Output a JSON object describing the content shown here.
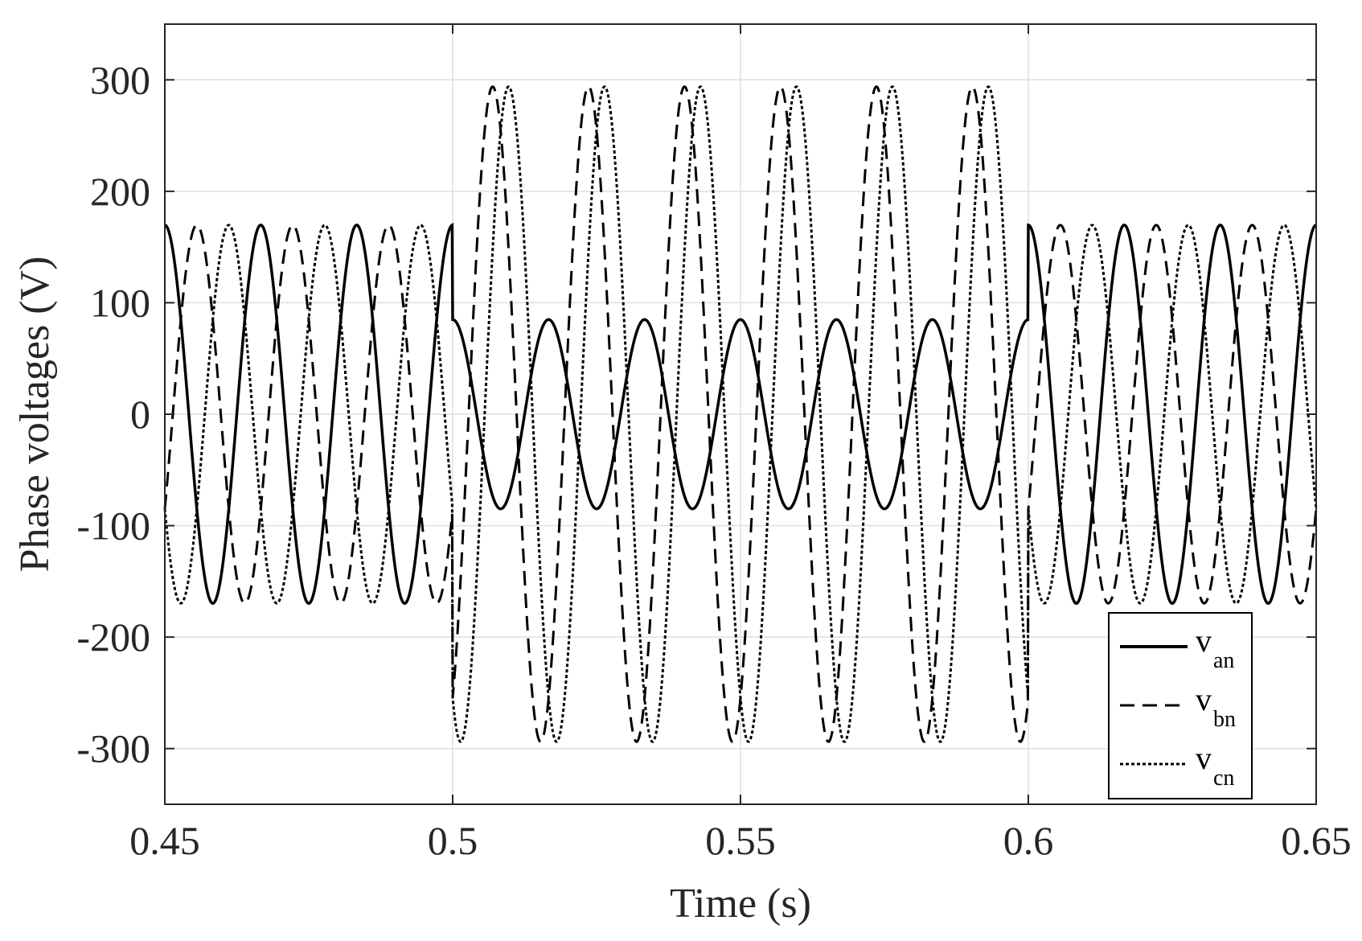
{
  "chart_data": {
    "type": "line",
    "xlabel": "Time (s)",
    "ylabel": "Phase voltages (V)",
    "xlim": [
      0.45,
      0.65
    ],
    "ylim": [
      -350,
      350
    ],
    "xticks": [
      0.45,
      0.5,
      0.55,
      0.6,
      0.65
    ],
    "xtick_labels": [
      "0.45",
      "0.5",
      "0.55",
      "0.6",
      "0.65"
    ],
    "yticks": [
      300,
      200,
      100,
      0,
      -100,
      -200,
      -300
    ],
    "ytick_labels": [
      "300",
      "200",
      "100",
      "0",
      "-100",
      "-200",
      "-300"
    ],
    "grid": true,
    "legend_position": "bottom-right",
    "frequency_hz": 60,
    "series": [
      {
        "name": "v",
        "subscript": "an",
        "style": "solid",
        "color": "#000000",
        "segments": [
          {
            "t_start": 0.45,
            "t_end": 0.5,
            "amplitude": 169.7,
            "phase_deg": 0
          },
          {
            "t_start": 0.5,
            "t_end": 0.6,
            "amplitude": 84.9,
            "phase_deg": 0
          },
          {
            "t_start": 0.6,
            "t_end": 0.65,
            "amplitude": 169.7,
            "phase_deg": 0
          }
        ]
      },
      {
        "name": "v",
        "subscript": "bn",
        "style": "dashed",
        "color": "#000000",
        "segments": [
          {
            "t_start": 0.45,
            "t_end": 0.5,
            "amplitude": 169.7,
            "phase_deg": -120
          },
          {
            "t_start": 0.5,
            "t_end": 0.6,
            "amplitude": 293.9,
            "phase_deg": -150
          },
          {
            "t_start": 0.6,
            "t_end": 0.65,
            "amplitude": 169.7,
            "phase_deg": -120
          }
        ]
      },
      {
        "name": "v",
        "subscript": "cn",
        "style": "dotted",
        "color": "#000000",
        "segments": [
          {
            "t_start": 0.45,
            "t_end": 0.5,
            "amplitude": 169.7,
            "phase_deg": 120
          },
          {
            "t_start": 0.5,
            "t_end": 0.6,
            "amplitude": 293.9,
            "phase_deg": 150
          },
          {
            "t_start": 0.6,
            "t_end": 0.65,
            "amplitude": 169.7,
            "phase_deg": 120
          }
        ]
      }
    ]
  }
}
